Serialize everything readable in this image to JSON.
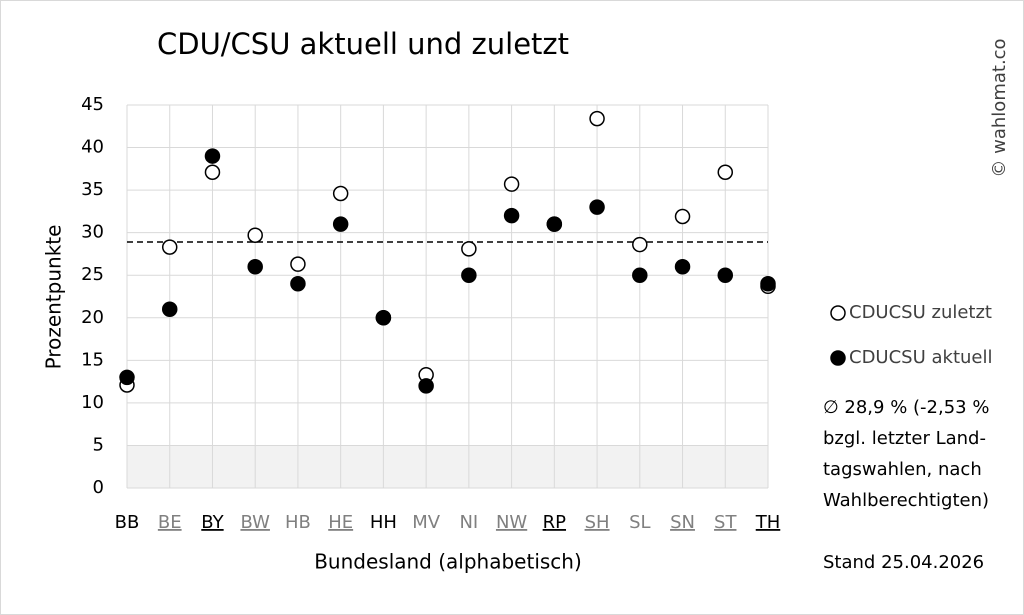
{
  "chart_data": {
    "type": "scatter",
    "title": "CDU/CSU aktuell und zuletzt",
    "x_label": "Bundesland (alphabetisch)",
    "y_label": "Prozentpunkte",
    "categories": [
      "BB",
      "BE",
      "BY",
      "BW",
      "HB",
      "HE",
      "HH",
      "MV",
      "NI",
      "NW",
      "RP",
      "SH",
      "SL",
      "SN",
      "ST",
      "TH"
    ],
    "category_colors": [
      "#000000",
      "#808080",
      "#000000",
      "#808080",
      "#808080",
      "#808080",
      "#000000",
      "#808080",
      "#808080",
      "#808080",
      "#000000",
      "#808080",
      "#808080",
      "#808080",
      "#808080",
      "#000000"
    ],
    "category_underline": [
      false,
      true,
      true,
      true,
      false,
      true,
      false,
      false,
      false,
      true,
      true,
      true,
      false,
      true,
      true,
      true
    ],
    "series": [
      {
        "name": "CDUCSU zuletzt",
        "color": "#ffffff",
        "marker": "open",
        "values": [
          12.1,
          28.3,
          37.1,
          29.7,
          26.3,
          34.6,
          20,
          13.3,
          28.1,
          35.7,
          31,
          43.4,
          28.6,
          31.9,
          37.1,
          23.7
        ]
      },
      {
        "name": "CDUCSU aktuell",
        "color": "#000000",
        "marker": "filled",
        "values": [
          13,
          21,
          39,
          26,
          24,
          31,
          20,
          12,
          25,
          32,
          31,
          33,
          25,
          26,
          25,
          24
        ]
      }
    ],
    "ylim": [
      0,
      45
    ],
    "yticks": [
      0,
      5,
      10,
      15,
      20,
      25,
      30,
      35,
      40,
      45
    ],
    "grid": true,
    "reference_line": 28.9,
    "shaded_band": [
      0,
      5
    ],
    "annotation_lines": [
      "∅ 28,9 % (-2,53 %",
      "bzgl. letzter Land-",
      "tagswahlen, nach",
      "Wahlberechtigten)"
    ],
    "date_note": "Stand 25.04.2026",
    "copyright": "© wahlomat.co"
  }
}
